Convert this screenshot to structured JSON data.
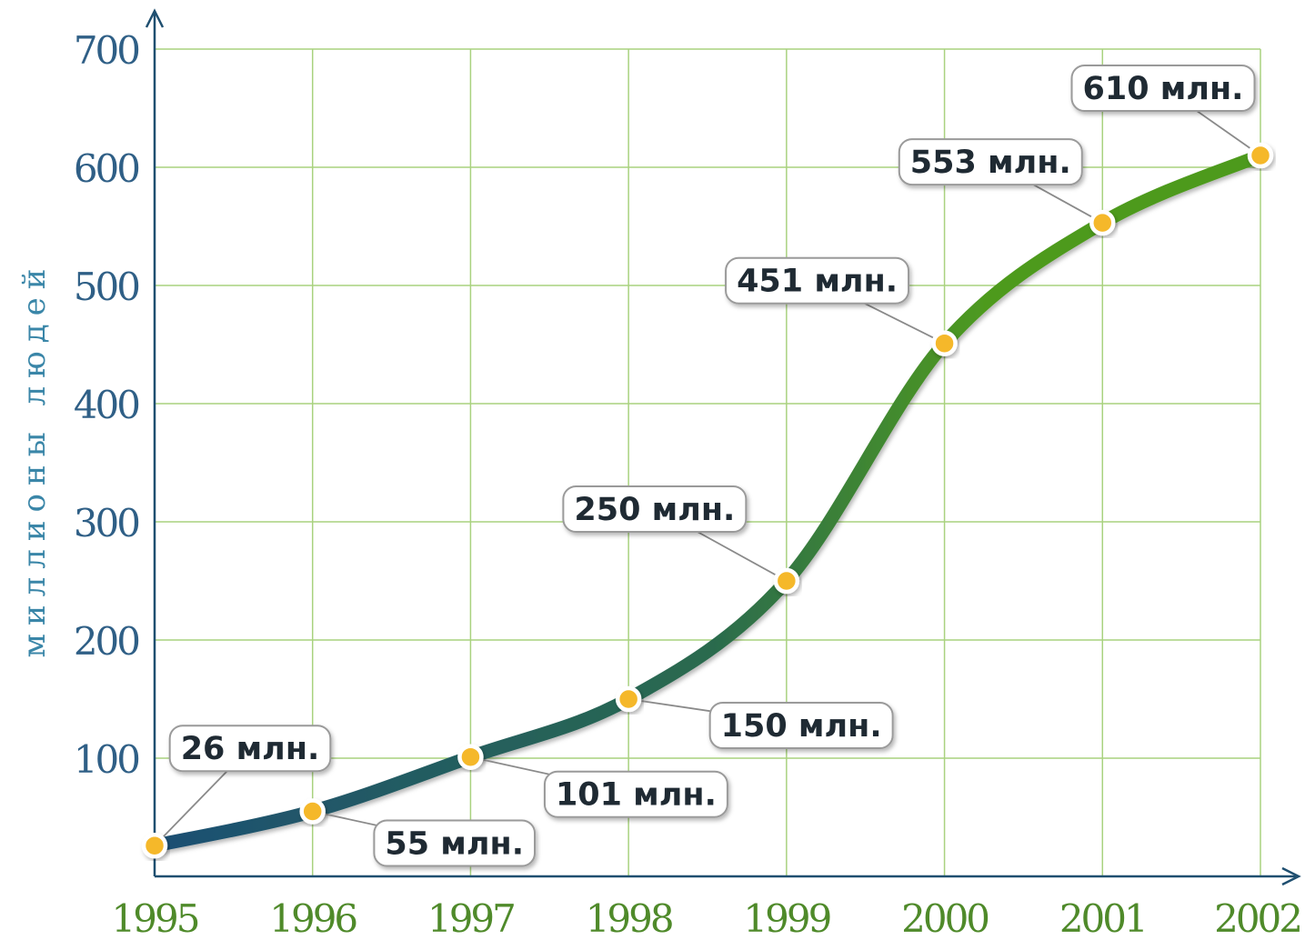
{
  "chart_data": {
    "type": "line",
    "title": "",
    "xlabel": "",
    "ylabel": "миллионы людей",
    "x": [
      "1995",
      "1996",
      "1997",
      "1998",
      "1999",
      "2000",
      "2001",
      "2002"
    ],
    "series": [
      {
        "values": [
          26,
          55,
          101,
          150,
          250,
          451,
          553,
          610
        ]
      }
    ],
    "data_labels": [
      "26 млн.",
      "55 млн.",
      "101 млн.",
      "150 млн.",
      "250 млн.",
      "451 млн.",
      "553 млн.",
      "610 млн."
    ],
    "yticks": [
      "100",
      "200",
      "300",
      "400",
      "500",
      "600",
      "700"
    ],
    "ylim": [
      0,
      700
    ],
    "grid": true,
    "legend": "none",
    "colors": {
      "grid": "#a9d27f",
      "axis": "#1f4f70",
      "line_start": "#1d4f73",
      "line_end": "#4e9a1f",
      "marker_fill": "#f5b82a",
      "ytick_text": "#2f5f86",
      "xtick_text": "#4f8a2a",
      "label_text": "#1f2a33"
    }
  }
}
